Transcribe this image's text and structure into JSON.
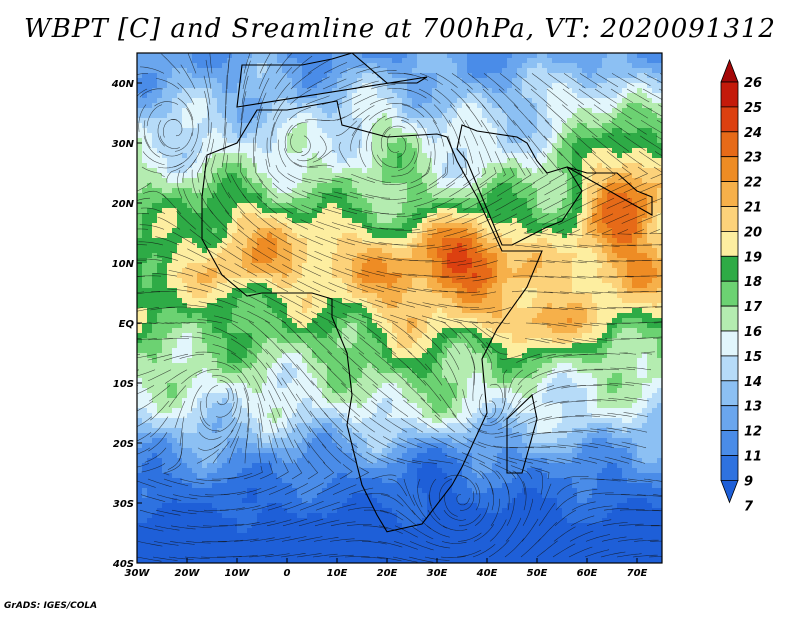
{
  "title": "WBPT [C] and Sreamline at 700hPa, VT: 2020091312",
  "credit": "GrADS: IGES/COLA",
  "map": {
    "lon_range": [
      -30,
      75
    ],
    "lat_range": [
      -40,
      45
    ],
    "lon_ticks": [
      {
        "value": -30,
        "label": "30W"
      },
      {
        "value": -20,
        "label": "20W"
      },
      {
        "value": -10,
        "label": "10W"
      },
      {
        "value": 0,
        "label": "0"
      },
      {
        "value": 10,
        "label": "10E"
      },
      {
        "value": 20,
        "label": "20E"
      },
      {
        "value": 30,
        "label": "30E"
      },
      {
        "value": 40,
        "label": "40E"
      },
      {
        "value": 50,
        "label": "50E"
      },
      {
        "value": 60,
        "label": "60E"
      },
      {
        "value": 70,
        "label": "70E"
      }
    ],
    "lat_ticks": [
      {
        "value": 40,
        "label": "40N"
      },
      {
        "value": 30,
        "label": "30N"
      },
      {
        "value": 20,
        "label": "20N"
      },
      {
        "value": 10,
        "label": "10N"
      },
      {
        "value": 0,
        "label": "EQ"
      },
      {
        "value": -10,
        "label": "10S"
      },
      {
        "value": -20,
        "label": "20S"
      },
      {
        "value": -30,
        "label": "30S"
      },
      {
        "value": -40,
        "label": "40S"
      }
    ],
    "colorbar": [
      {
        "label": "7",
        "color": "#1e5fd8"
      },
      {
        "label": "9",
        "color": "#2e72e0"
      },
      {
        "label": "11",
        "color": "#4a8ce8"
      },
      {
        "label": "12",
        "color": "#6aa6ee"
      },
      {
        "label": "13",
        "color": "#8cc0f3"
      },
      {
        "label": "14",
        "color": "#b6dbf8"
      },
      {
        "label": "15",
        "color": "#e2f6fc"
      },
      {
        "label": "16",
        "color": "#b4ecb0"
      },
      {
        "label": "17",
        "color": "#6cd272"
      },
      {
        "label": "18",
        "color": "#2eab46"
      },
      {
        "label": "19",
        "color": "#fdeea0"
      },
      {
        "label": "20",
        "color": "#fcd27a"
      },
      {
        "label": "21",
        "color": "#f6b04a"
      },
      {
        "label": "22",
        "color": "#ee8c24"
      },
      {
        "label": "23",
        "color": "#e66a18"
      },
      {
        "label": "24",
        "color": "#dc4010"
      },
      {
        "label": "25",
        "color": "#c41a0a"
      },
      {
        "label": "26",
        "color": "#a40808"
      }
    ]
  }
}
